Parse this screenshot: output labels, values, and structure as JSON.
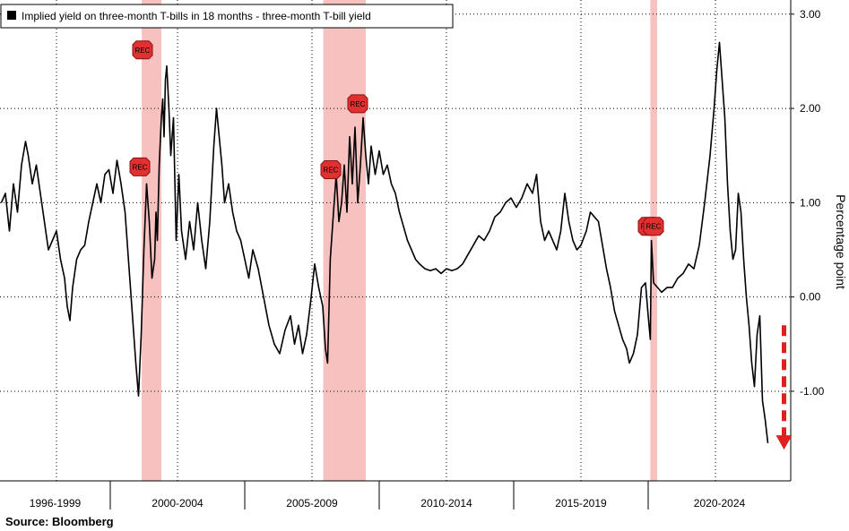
{
  "chart_data": {
    "type": "line",
    "title": "",
    "legend": "Implied yield on three-month T-bills in 18 months - three-month T-bill yield",
    "legend_placement": "top-left",
    "ylabel": "Percentage point",
    "ylim": [
      -1.95,
      3.15
    ],
    "yticks": [
      3.0,
      2.0,
      1.0,
      0.0,
      -1.0
    ],
    "ytick_labels": [
      "3.00",
      "2.00",
      "1.00",
      "0.00",
      "-1.00"
    ],
    "xlim": [
      1995.9,
      2025.3
    ],
    "x_periods": [
      "1996-1999",
      "2000-2004",
      "2005-2009",
      "2010-2014",
      "2015-2019",
      "2020-2024"
    ],
    "x_period_bounds": [
      1995.9,
      2000.0,
      2005.0,
      2010.0,
      2015.0,
      2020.0,
      2025.3
    ],
    "grid": true,
    "line_color": "#000000",
    "recession_color": "#f4b6b3",
    "recessions": [
      {
        "start": 2001.17,
        "end": 2001.9
      },
      {
        "start": 2007.92,
        "end": 2009.5
      },
      {
        "start": 2020.08,
        "end": 2020.33
      }
    ],
    "rec_markers": [
      {
        "label": "REC",
        "x": 2001.2,
        "y": 2.62
      },
      {
        "label": "REC",
        "x": 2001.1,
        "y": 1.38
      },
      {
        "label": "REC",
        "x": 2008.2,
        "y": 1.35
      },
      {
        "label": "REC",
        "x": 2009.2,
        "y": 2.05
      },
      {
        "label": "REC",
        "x": 2020.0,
        "y": 0.75
      },
      {
        "label": "REC",
        "x": 2020.2,
        "y": 0.75
      }
    ],
    "series": [
      {
        "values": [
          [
            1995.95,
            1.0
          ],
          [
            1996.1,
            1.1
          ],
          [
            1996.25,
            0.7
          ],
          [
            1996.4,
            1.2
          ],
          [
            1996.55,
            0.9
          ],
          [
            1996.7,
            1.4
          ],
          [
            1996.85,
            1.65
          ],
          [
            1996.95,
            1.5
          ],
          [
            1997.1,
            1.2
          ],
          [
            1997.25,
            1.4
          ],
          [
            1997.4,
            1.1
          ],
          [
            1997.55,
            0.8
          ],
          [
            1997.7,
            0.5
          ],
          [
            1997.85,
            0.6
          ],
          [
            1998.0,
            0.7
          ],
          [
            1998.15,
            0.4
          ],
          [
            1998.3,
            0.2
          ],
          [
            1998.4,
            -0.1
          ],
          [
            1998.5,
            -0.25
          ],
          [
            1998.6,
            0.1
          ],
          [
            1998.75,
            0.4
          ],
          [
            1998.9,
            0.5
          ],
          [
            1999.05,
            0.55
          ],
          [
            1999.2,
            0.8
          ],
          [
            1999.35,
            1.0
          ],
          [
            1999.5,
            1.2
          ],
          [
            1999.65,
            1.0
          ],
          [
            1999.8,
            1.3
          ],
          [
            1999.95,
            1.35
          ],
          [
            2000.1,
            1.1
          ],
          [
            2000.25,
            1.45
          ],
          [
            2000.4,
            1.2
          ],
          [
            2000.55,
            0.9
          ],
          [
            2000.7,
            0.3
          ],
          [
            2000.85,
            -0.3
          ],
          [
            2000.95,
            -0.7
          ],
          [
            2001.05,
            -1.05
          ],
          [
            2001.15,
            -0.4
          ],
          [
            2001.25,
            0.5
          ],
          [
            2001.35,
            1.2
          ],
          [
            2001.45,
            0.8
          ],
          [
            2001.55,
            0.2
          ],
          [
            2001.65,
            0.4
          ],
          [
            2001.7,
            0.9
          ],
          [
            2001.75,
            0.6
          ],
          [
            2001.82,
            1.4
          ],
          [
            2001.9,
            1.9
          ],
          [
            2001.95,
            2.1
          ],
          [
            2002.0,
            1.7
          ],
          [
            2002.05,
            2.3
          ],
          [
            2002.1,
            2.45
          ],
          [
            2002.18,
            2.0
          ],
          [
            2002.25,
            1.5
          ],
          [
            2002.35,
            1.9
          ],
          [
            2002.45,
            0.6
          ],
          [
            2002.55,
            1.3
          ],
          [
            2002.65,
            0.7
          ],
          [
            2002.8,
            0.4
          ],
          [
            2002.95,
            0.8
          ],
          [
            2003.1,
            0.5
          ],
          [
            2003.25,
            1.0
          ],
          [
            2003.4,
            0.6
          ],
          [
            2003.55,
            0.3
          ],
          [
            2003.7,
            0.8
          ],
          [
            2003.85,
            1.6
          ],
          [
            2003.95,
            2.0
          ],
          [
            2004.05,
            1.7
          ],
          [
            2004.15,
            1.4
          ],
          [
            2004.25,
            1.0
          ],
          [
            2004.4,
            1.2
          ],
          [
            2004.55,
            0.9
          ],
          [
            2004.7,
            0.7
          ],
          [
            2004.85,
            0.6
          ],
          [
            2005.0,
            0.4
          ],
          [
            2005.15,
            0.2
          ],
          [
            2005.3,
            0.5
          ],
          [
            2005.5,
            0.3
          ],
          [
            2005.7,
            0.0
          ],
          [
            2005.9,
            -0.3
          ],
          [
            2006.1,
            -0.5
          ],
          [
            2006.3,
            -0.6
          ],
          [
            2006.5,
            -0.35
          ],
          [
            2006.7,
            -0.2
          ],
          [
            2006.85,
            -0.5
          ],
          [
            2007.0,
            -0.3
          ],
          [
            2007.15,
            -0.6
          ],
          [
            2007.3,
            -0.4
          ],
          [
            2007.45,
            -0.05
          ],
          [
            2007.6,
            0.35
          ],
          [
            2007.75,
            0.1
          ],
          [
            2007.9,
            -0.1
          ],
          [
            2008.0,
            -0.55
          ],
          [
            2008.08,
            -0.7
          ],
          [
            2008.18,
            0.4
          ],
          [
            2008.3,
            0.9
          ],
          [
            2008.4,
            1.3
          ],
          [
            2008.5,
            0.8
          ],
          [
            2008.6,
            1.0
          ],
          [
            2008.7,
            1.4
          ],
          [
            2008.8,
            0.9
          ],
          [
            2008.9,
            1.7
          ],
          [
            2009.0,
            1.2
          ],
          [
            2009.1,
            1.8
          ],
          [
            2009.2,
            1.0
          ],
          [
            2009.3,
            1.4
          ],
          [
            2009.4,
            1.9
          ],
          [
            2009.5,
            1.5
          ],
          [
            2009.6,
            1.2
          ],
          [
            2009.7,
            1.6
          ],
          [
            2009.85,
            1.3
          ],
          [
            2010.0,
            1.55
          ],
          [
            2010.15,
            1.3
          ],
          [
            2010.3,
            1.4
          ],
          [
            2010.45,
            1.2
          ],
          [
            2010.6,
            1.1
          ],
          [
            2010.75,
            0.9
          ],
          [
            2010.9,
            0.75
          ],
          [
            2011.05,
            0.6
          ],
          [
            2011.2,
            0.5
          ],
          [
            2011.35,
            0.4
          ],
          [
            2011.5,
            0.35
          ],
          [
            2011.7,
            0.3
          ],
          [
            2011.9,
            0.28
          ],
          [
            2012.1,
            0.3
          ],
          [
            2012.3,
            0.25
          ],
          [
            2012.5,
            0.3
          ],
          [
            2012.7,
            0.28
          ],
          [
            2012.9,
            0.3
          ],
          [
            2013.1,
            0.35
          ],
          [
            2013.3,
            0.45
          ],
          [
            2013.5,
            0.55
          ],
          [
            2013.7,
            0.65
          ],
          [
            2013.9,
            0.6
          ],
          [
            2014.1,
            0.7
          ],
          [
            2014.3,
            0.85
          ],
          [
            2014.5,
            0.9
          ],
          [
            2014.7,
            1.0
          ],
          [
            2014.9,
            1.05
          ],
          [
            2015.1,
            0.95
          ],
          [
            2015.3,
            1.05
          ],
          [
            2015.5,
            1.2
          ],
          [
            2015.7,
            1.1
          ],
          [
            2015.85,
            1.3
          ],
          [
            2016.0,
            0.8
          ],
          [
            2016.15,
            0.6
          ],
          [
            2016.3,
            0.7
          ],
          [
            2016.45,
            0.6
          ],
          [
            2016.6,
            0.5
          ],
          [
            2016.75,
            0.7
          ],
          [
            2016.9,
            1.1
          ],
          [
            2017.05,
            0.8
          ],
          [
            2017.2,
            0.6
          ],
          [
            2017.35,
            0.5
          ],
          [
            2017.5,
            0.55
          ],
          [
            2017.7,
            0.7
          ],
          [
            2017.85,
            0.9
          ],
          [
            2018.0,
            0.85
          ],
          [
            2018.15,
            0.8
          ],
          [
            2018.3,
            0.55
          ],
          [
            2018.45,
            0.3
          ],
          [
            2018.6,
            0.1
          ],
          [
            2018.75,
            -0.15
          ],
          [
            2018.9,
            -0.3
          ],
          [
            2019.05,
            -0.45
          ],
          [
            2019.2,
            -0.55
          ],
          [
            2019.3,
            -0.7
          ],
          [
            2019.45,
            -0.6
          ],
          [
            2019.6,
            -0.4
          ],
          [
            2019.75,
            0.1
          ],
          [
            2019.9,
            0.15
          ],
          [
            2020.0,
            -0.2
          ],
          [
            2020.08,
            -0.45
          ],
          [
            2020.12,
            0.6
          ],
          [
            2020.2,
            0.15
          ],
          [
            2020.35,
            0.1
          ],
          [
            2020.5,
            0.05
          ],
          [
            2020.7,
            0.1
          ],
          [
            2020.9,
            0.1
          ],
          [
            2021.1,
            0.2
          ],
          [
            2021.3,
            0.25
          ],
          [
            2021.5,
            0.35
          ],
          [
            2021.7,
            0.3
          ],
          [
            2021.9,
            0.55
          ],
          [
            2022.1,
            1.0
          ],
          [
            2022.3,
            1.5
          ],
          [
            2022.45,
            2.0
          ],
          [
            2022.55,
            2.4
          ],
          [
            2022.65,
            2.7
          ],
          [
            2022.75,
            2.3
          ],
          [
            2022.85,
            1.9
          ],
          [
            2022.95,
            1.2
          ],
          [
            2023.05,
            0.7
          ],
          [
            2023.15,
            0.4
          ],
          [
            2023.25,
            0.5
          ],
          [
            2023.35,
            1.1
          ],
          [
            2023.45,
            0.9
          ],
          [
            2023.55,
            0.4
          ],
          [
            2023.65,
            0.0
          ],
          [
            2023.75,
            -0.3
          ],
          [
            2023.85,
            -0.7
          ],
          [
            2023.95,
            -0.95
          ],
          [
            2024.05,
            -0.4
          ],
          [
            2024.15,
            -0.2
          ],
          [
            2024.25,
            -1.1
          ],
          [
            2024.35,
            -1.3
          ],
          [
            2024.45,
            -1.55
          ]
        ]
      }
    ],
    "forecast_arrow": {
      "from": [
        2025.05,
        -0.3
      ],
      "to": [
        2025.05,
        -1.6
      ],
      "color": "#e02020"
    }
  },
  "source": "Source:  Bloomberg"
}
